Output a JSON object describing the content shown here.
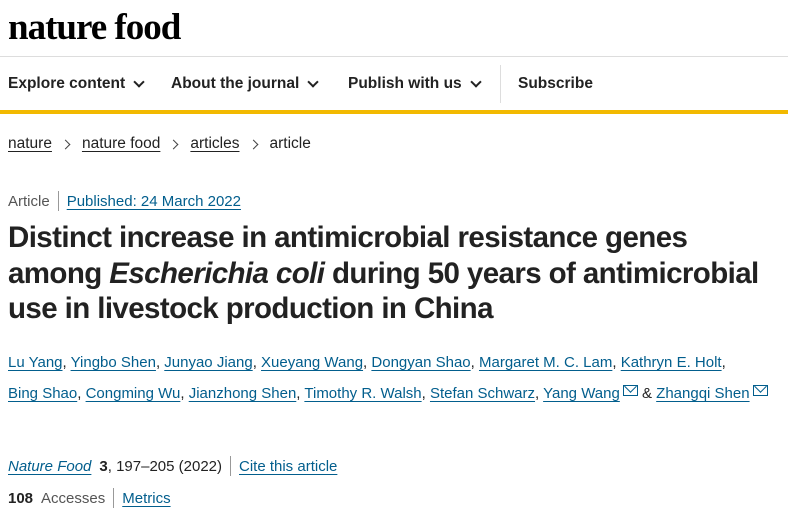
{
  "brand": "nature food",
  "nav": {
    "items": [
      {
        "label": "Explore content"
      },
      {
        "label": "About the journal"
      },
      {
        "label": "Publish with us"
      }
    ],
    "subscribe": "Subscribe"
  },
  "breadcrumb": [
    "nature",
    "nature food",
    "articles",
    "article"
  ],
  "article": {
    "type": "Article",
    "published": "Published: 24 March 2022",
    "title_part1": "Distinct increase in antimicrobial resistance genes among ",
    "title_italic": "Escherichia coli",
    "title_part2": " during 50 years of antimicrobial use in livestock production in China",
    "authors": [
      "Lu Yang",
      "Yingbo Shen",
      "Junyao Jiang",
      "Xueyang Wang",
      "Dongyan Shao",
      "Margaret M. C. Lam",
      "Kathryn E. Holt",
      "Bing Shao",
      "Congming Wu",
      "Jianzhong Shen",
      "Timothy R. Walsh",
      "Stefan Schwarz",
      "Yang Wang",
      "Zhangqi Shen"
    ],
    "author_sep": ", ",
    "author_amp": " & ",
    "journal": "Nature Food",
    "volume": "3",
    "pages": ", 197–205 (2022)",
    "cite": "Cite this article",
    "accesses_count": "108",
    "accesses_label": "Accesses",
    "metrics": "Metrics"
  },
  "colors": {
    "link": "#025e8d",
    "accent_bar": "#f2b900"
  },
  "icons": [
    "chevron-down-icon",
    "chevron-right-icon",
    "mail-icon"
  ]
}
